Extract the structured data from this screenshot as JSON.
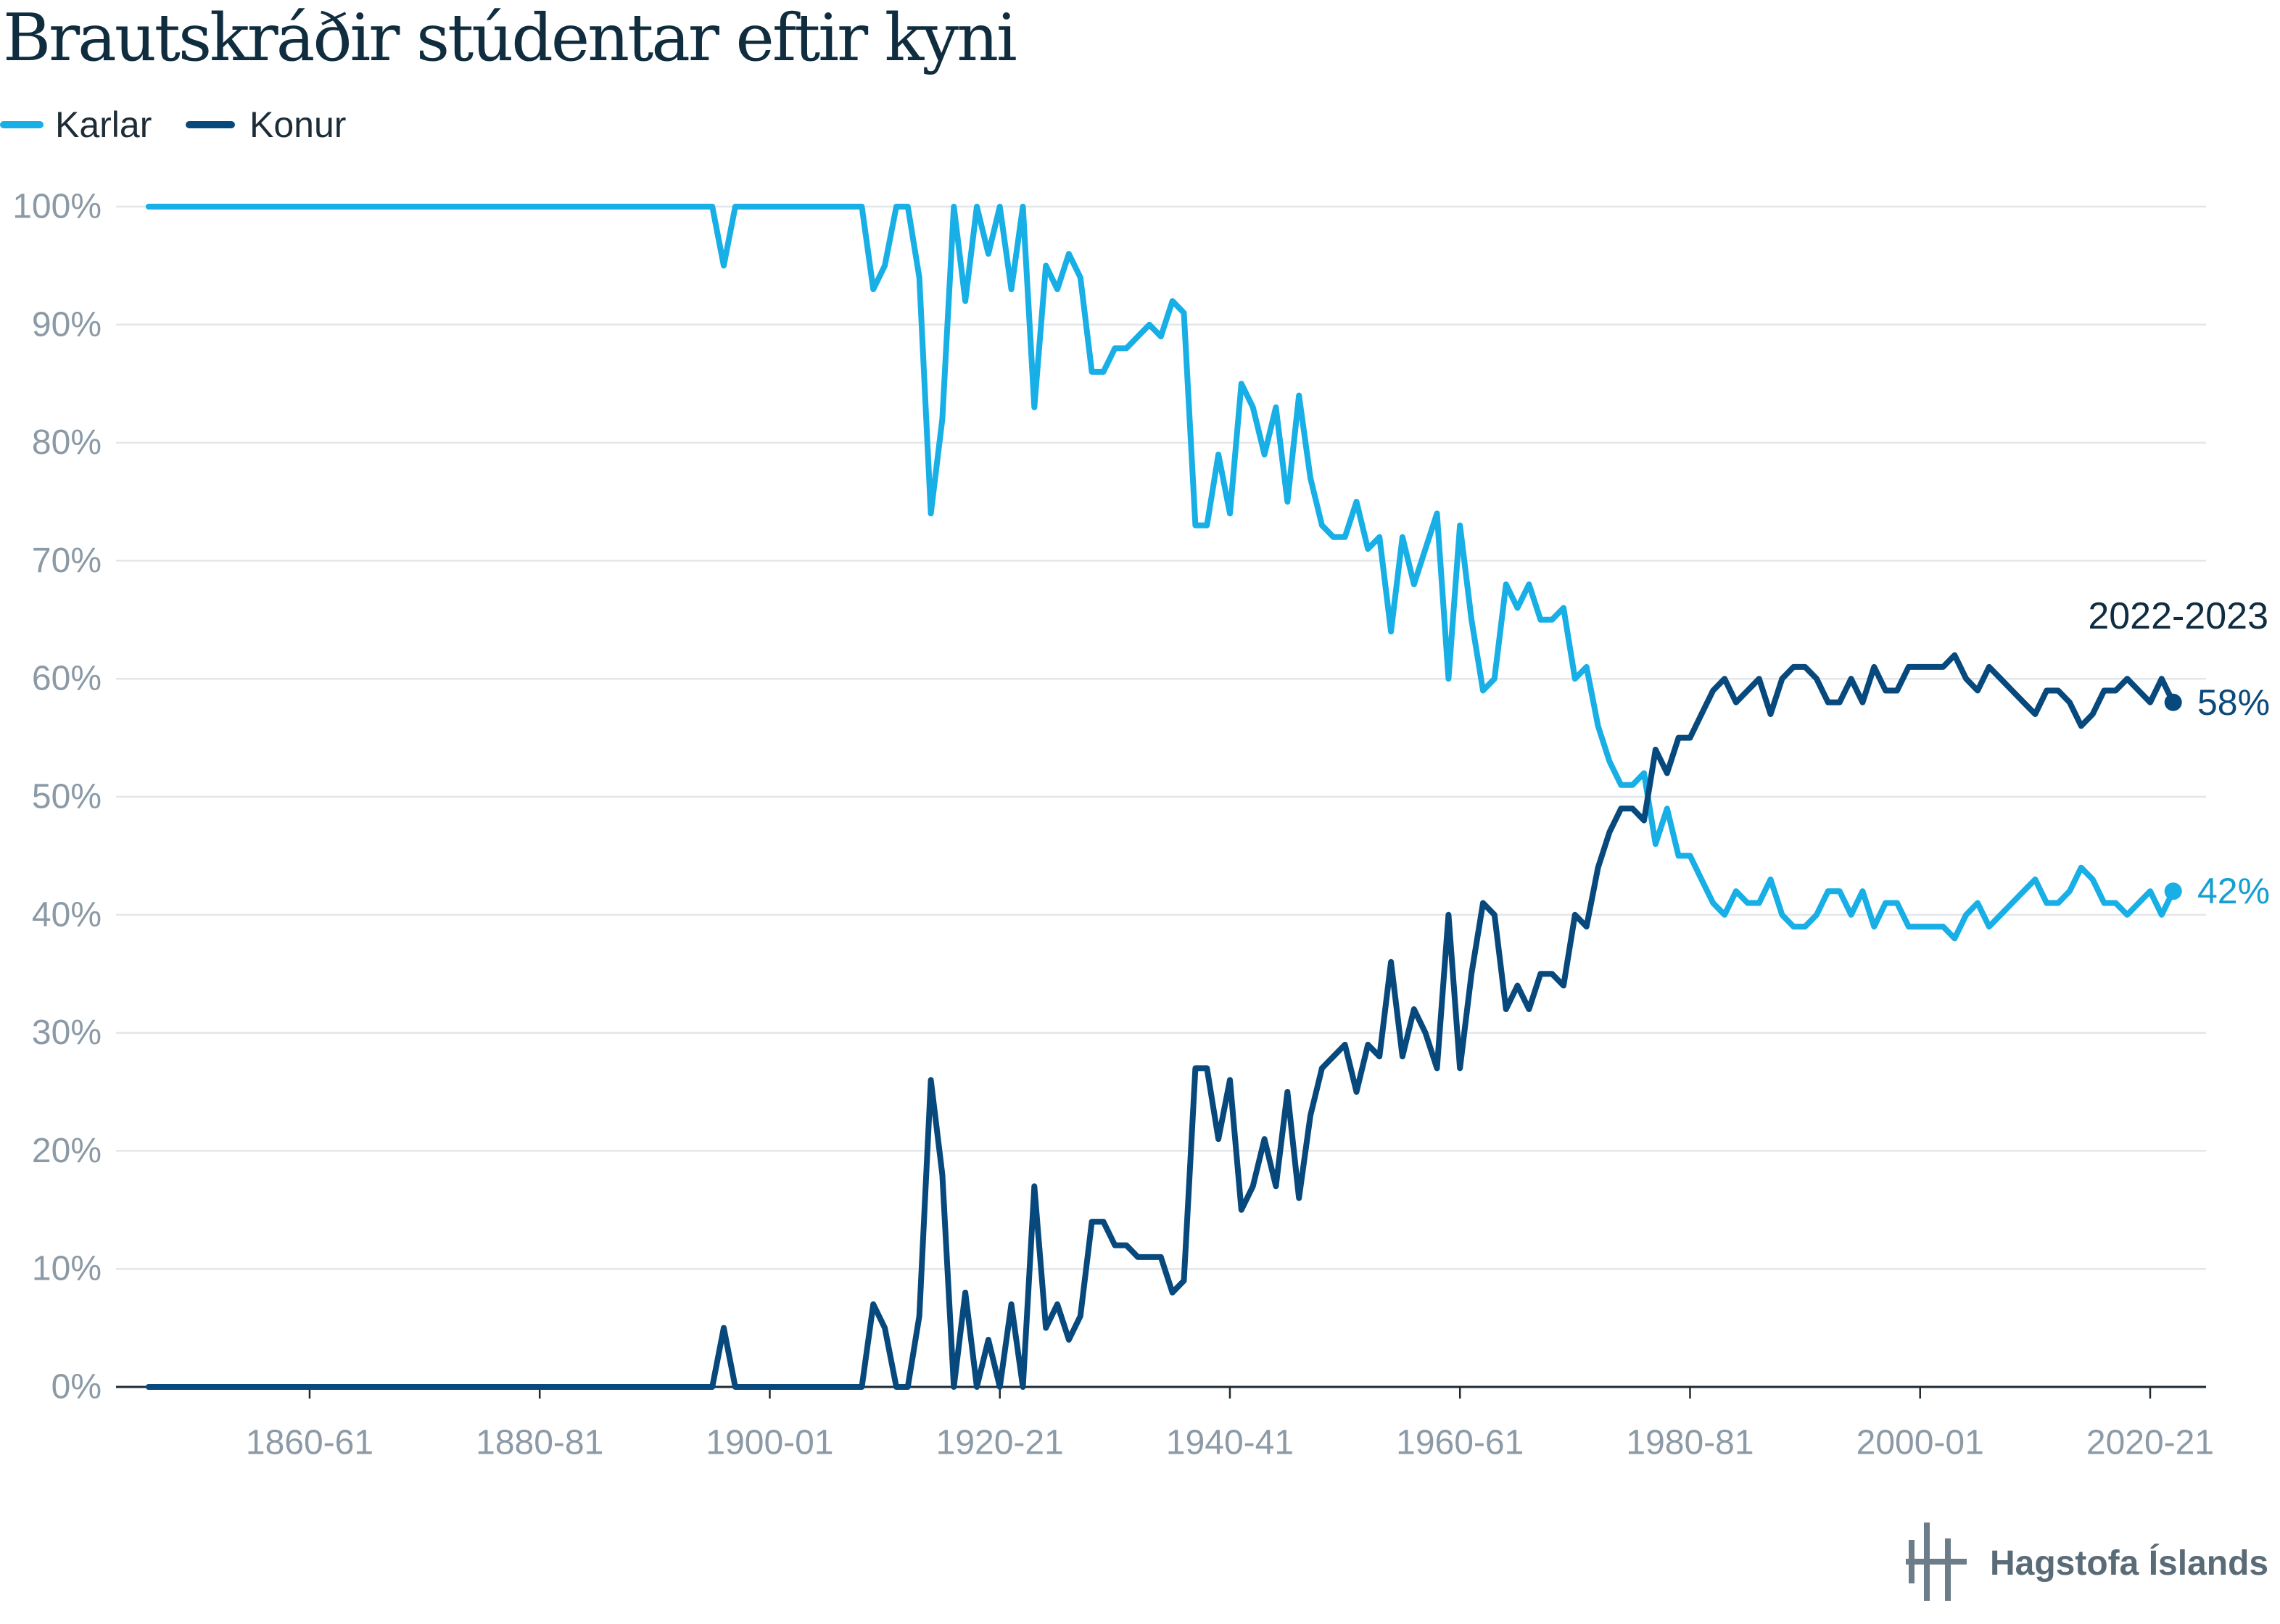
{
  "chart_data": {
    "type": "line",
    "title": "Brautskráðir stúdentar eftir kyni",
    "legend_position": "top-left",
    "grid": true,
    "ylim": [
      0,
      100
    ],
    "y_ticks": [
      {
        "value": 0,
        "label": "0%"
      },
      {
        "value": 10,
        "label": "10%"
      },
      {
        "value": 20,
        "label": "20%"
      },
      {
        "value": 30,
        "label": "30%"
      },
      {
        "value": 40,
        "label": "40%"
      },
      {
        "value": 50,
        "label": "50%"
      },
      {
        "value": 60,
        "label": "60%"
      },
      {
        "value": 70,
        "label": "70%"
      },
      {
        "value": 80,
        "label": "80%"
      },
      {
        "value": 90,
        "label": "90%"
      },
      {
        "value": 100,
        "label": "100%"
      }
    ],
    "x_ticks": [
      "1860-61",
      "1880-81",
      "1900-01",
      "1920-21",
      "1940-41",
      "1960-61",
      "1980-81",
      "2000-01",
      "2020-21"
    ],
    "x": [
      "1846-47",
      "1847-48",
      "1848-49",
      "1849-50",
      "1850-51",
      "1851-52",
      "1852-53",
      "1853-54",
      "1854-55",
      "1855-56",
      "1856-57",
      "1857-58",
      "1858-59",
      "1859-60",
      "1860-61",
      "1861-62",
      "1862-63",
      "1863-64",
      "1864-65",
      "1865-66",
      "1866-67",
      "1867-68",
      "1868-69",
      "1869-70",
      "1870-71",
      "1871-72",
      "1872-73",
      "1873-74",
      "1874-75",
      "1875-76",
      "1876-77",
      "1877-78",
      "1878-79",
      "1879-80",
      "1880-81",
      "1881-82",
      "1882-83",
      "1883-84",
      "1884-85",
      "1885-86",
      "1886-87",
      "1887-88",
      "1888-89",
      "1889-90",
      "1890-91",
      "1891-92",
      "1892-93",
      "1893-94",
      "1894-95",
      "1895-96",
      "1896-97",
      "1897-98",
      "1898-99",
      "1899-00",
      "1900-01",
      "1901-02",
      "1902-03",
      "1903-04",
      "1904-05",
      "1905-06",
      "1906-07",
      "1907-08",
      "1908-09",
      "1909-10",
      "1910-11",
      "1911-12",
      "1912-13",
      "1913-14",
      "1914-15",
      "1915-16",
      "1916-17",
      "1917-18",
      "1918-19",
      "1919-20",
      "1920-21",
      "1921-22",
      "1922-23",
      "1923-24",
      "1924-25",
      "1925-26",
      "1926-27",
      "1927-28",
      "1928-29",
      "1929-30",
      "1930-31",
      "1931-32",
      "1932-33",
      "1933-34",
      "1934-35",
      "1935-36",
      "1936-37",
      "1937-38",
      "1938-39",
      "1939-40",
      "1940-41",
      "1941-42",
      "1942-43",
      "1943-44",
      "1944-45",
      "1945-46",
      "1946-47",
      "1947-48",
      "1948-49",
      "1949-50",
      "1950-51",
      "1951-52",
      "1952-53",
      "1953-54",
      "1954-55",
      "1955-56",
      "1956-57",
      "1957-58",
      "1958-59",
      "1959-60",
      "1960-61",
      "1961-62",
      "1962-63",
      "1963-64",
      "1964-65",
      "1965-66",
      "1966-67",
      "1967-68",
      "1968-69",
      "1969-70",
      "1970-71",
      "1971-72",
      "1972-73",
      "1973-74",
      "1974-75",
      "1975-76",
      "1976-77",
      "1977-78",
      "1978-79",
      "1979-80",
      "1980-81",
      "1981-82",
      "1982-83",
      "1983-84",
      "1984-85",
      "1985-86",
      "1986-87",
      "1987-88",
      "1988-89",
      "1989-90",
      "1990-91",
      "1991-92",
      "1992-93",
      "1993-94",
      "1994-95",
      "1995-96",
      "1996-97",
      "1997-98",
      "1998-99",
      "1999-00",
      "2000-01",
      "2001-02",
      "2002-03",
      "2003-04",
      "2004-05",
      "2005-06",
      "2006-07",
      "2007-08",
      "2008-09",
      "2009-10",
      "2010-11",
      "2011-12",
      "2012-13",
      "2013-14",
      "2014-15",
      "2015-16",
      "2016-17",
      "2017-18",
      "2018-19",
      "2019-20",
      "2020-21",
      "2021-22",
      "2022-23"
    ],
    "series": [
      {
        "name": "Karlar",
        "color": "#17afe5",
        "values": [
          100,
          100,
          100,
          100,
          100,
          100,
          100,
          100,
          100,
          100,
          100,
          100,
          100,
          100,
          100,
          100,
          100,
          100,
          100,
          100,
          100,
          100,
          100,
          100,
          100,
          100,
          100,
          100,
          100,
          100,
          100,
          100,
          100,
          100,
          100,
          100,
          100,
          100,
          100,
          100,
          100,
          100,
          100,
          100,
          100,
          100,
          100,
          100,
          100,
          100,
          95,
          100,
          100,
          100,
          100,
          100,
          100,
          100,
          100,
          100,
          100,
          100,
          100,
          93,
          95,
          100,
          100,
          94,
          74,
          82,
          100,
          92,
          100,
          96,
          100,
          93,
          100,
          83,
          95,
          93,
          96,
          94,
          86,
          86,
          88,
          88,
          89,
          90,
          89,
          92,
          91,
          73,
          73,
          79,
          74,
          85,
          83,
          79,
          83,
          75,
          84,
          77,
          73,
          72,
          72,
          75,
          71,
          72,
          64,
          72,
          68,
          71,
          74,
          60,
          73,
          65,
          59,
          60,
          68,
          66,
          68,
          65,
          65,
          66,
          60,
          61,
          56,
          53,
          51,
          51,
          52,
          46,
          49,
          45,
          45,
          43,
          41,
          40,
          42,
          41,
          41,
          43,
          40,
          39,
          39,
          40,
          42,
          42,
          40,
          42,
          39,
          41,
          41,
          39,
          39,
          39,
          39,
          38,
          40,
          41,
          39,
          40,
          41,
          42,
          43,
          41,
          41,
          42,
          44,
          43,
          41,
          41,
          40,
          41,
          42,
          40,
          42
        ]
      },
      {
        "name": "Konur",
        "color": "#07497c",
        "values": [
          0,
          0,
          0,
          0,
          0,
          0,
          0,
          0,
          0,
          0,
          0,
          0,
          0,
          0,
          0,
          0,
          0,
          0,
          0,
          0,
          0,
          0,
          0,
          0,
          0,
          0,
          0,
          0,
          0,
          0,
          0,
          0,
          0,
          0,
          0,
          0,
          0,
          0,
          0,
          0,
          0,
          0,
          0,
          0,
          0,
          0,
          0,
          0,
          0,
          0,
          5,
          0,
          0,
          0,
          0,
          0,
          0,
          0,
          0,
          0,
          0,
          0,
          0,
          7,
          5,
          0,
          0,
          6,
          26,
          18,
          0,
          8,
          0,
          4,
          0,
          7,
          0,
          17,
          5,
          7,
          4,
          6,
          14,
          14,
          12,
          12,
          11,
          11,
          11,
          8,
          9,
          27,
          27,
          21,
          26,
          15,
          17,
          21,
          17,
          25,
          16,
          23,
          27,
          28,
          29,
          25,
          29,
          28,
          36,
          28,
          32,
          30,
          27,
          40,
          27,
          35,
          41,
          40,
          32,
          34,
          32,
          35,
          35,
          34,
          40,
          39,
          44,
          47,
          49,
          49,
          48,
          54,
          52,
          55,
          55,
          57,
          59,
          60,
          58,
          59,
          60,
          57,
          60,
          61,
          61,
          60,
          58,
          58,
          60,
          58,
          61,
          59,
          59,
          61,
          61,
          61,
          61,
          62,
          60,
          59,
          61,
          60,
          59,
          58,
          57,
          59,
          59,
          58,
          56,
          57,
          59,
          59,
          60,
          59,
          58,
          60,
          58
        ]
      }
    ],
    "annotation": "2022-2023",
    "end_labels": [
      {
        "series_index": 1,
        "text": "58%",
        "color": "#0b4a7a"
      },
      {
        "series_index": 0,
        "text": "42%",
        "color": "#159fd3"
      }
    ]
  },
  "branding": {
    "name": "Hagstofa Íslands",
    "logo_icon": "hagstofa-logo-icon",
    "logo_color": "#6c7c88"
  }
}
